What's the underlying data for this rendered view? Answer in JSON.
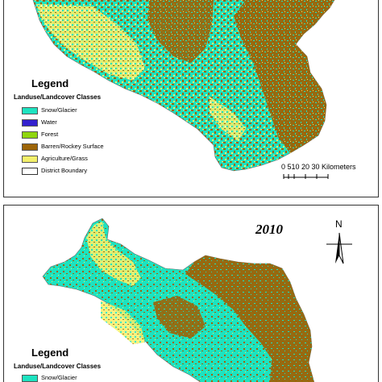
{
  "colors": {
    "snow_glacier": "#1de3c0",
    "water": "#3320ce",
    "forest": "#8fd60f",
    "barren": "#9c6408",
    "agriculture": "#f3f06a",
    "boundary": "#ffffff"
  },
  "top_map": {
    "legend": {
      "title": "Legend",
      "subtitle": "Landuse/Landcover Classes",
      "items": [
        {
          "label": "Snow/Glacier",
          "color_key": "snow_glacier"
        },
        {
          "label": "Water",
          "color_key": "water"
        },
        {
          "label": "Forest",
          "color_key": "forest"
        },
        {
          "label": "Barren/Rockey Surface",
          "color_key": "barren"
        },
        {
          "label": "Agriculture/Grass",
          "color_key": "agriculture"
        },
        {
          "label": "District Boundary",
          "color_key": "boundary"
        }
      ]
    },
    "scale_bar": {
      "ticks": "0 510  20  30 Kilometers"
    }
  },
  "bottom_map": {
    "year": "2010",
    "north_arrow": "N",
    "legend": {
      "title": "Legend",
      "subtitle": "Landuse/Landcover Classes",
      "items": [
        {
          "label": "Snow/Glacier",
          "color_key": "snow_glacier"
        }
      ]
    }
  }
}
